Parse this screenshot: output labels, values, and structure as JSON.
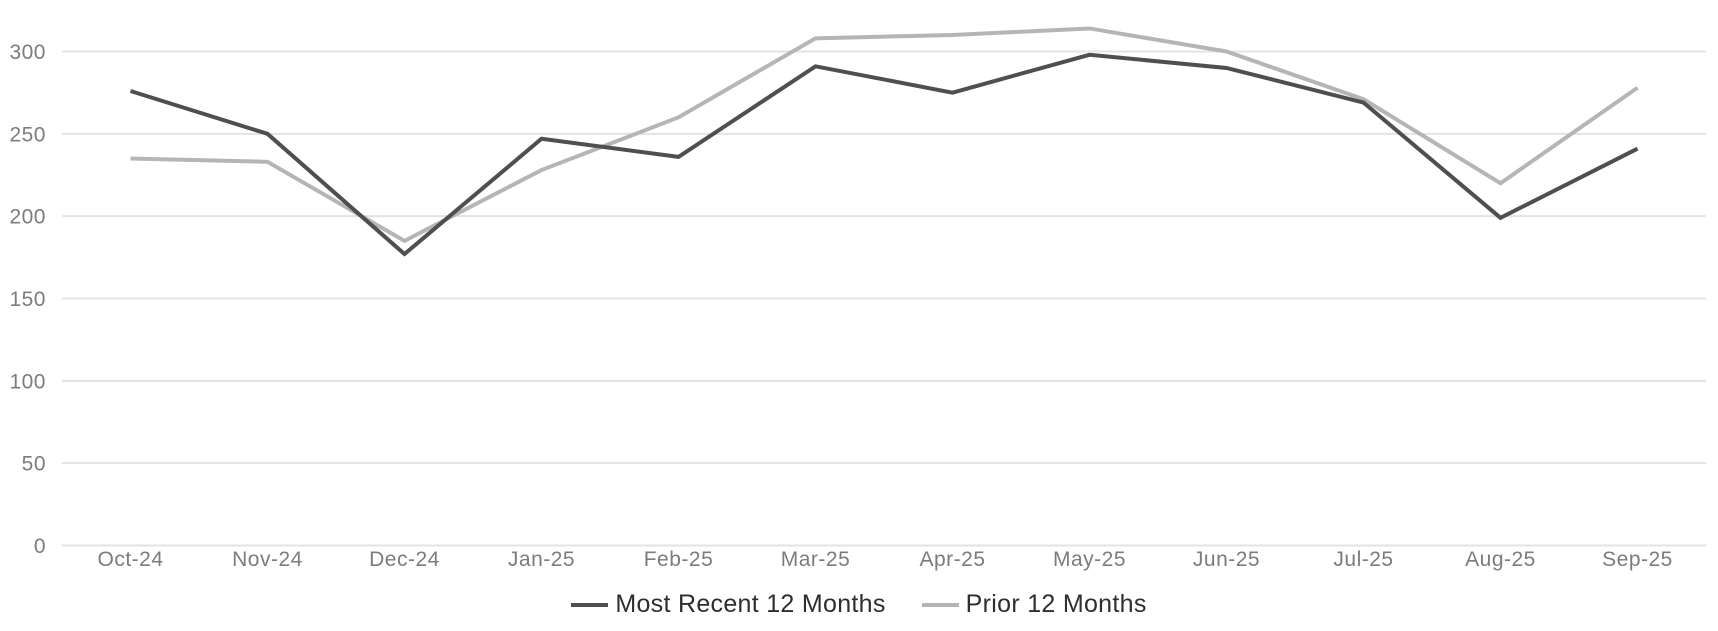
{
  "chart_data": {
    "type": "line",
    "title": "",
    "xlabel": "",
    "ylabel": "",
    "categories": [
      "Oct-24",
      "Nov-24",
      "Dec-24",
      "Jan-25",
      "Feb-25",
      "Mar-25",
      "Apr-25",
      "May-25",
      "Jun-25",
      "Jul-25",
      "Aug-25",
      "Sep-25"
    ],
    "series": [
      {
        "name": "Most Recent 12 Months",
        "color": "#4f4f4f",
        "values": [
          276,
          250,
          177,
          247,
          236,
          291,
          275,
          298,
          290,
          269,
          199,
          241
        ]
      },
      {
        "name": "Prior 12 Months",
        "color": "#b5b5b5",
        "values": [
          235,
          233,
          185,
          228,
          260,
          308,
          310,
          314,
          300,
          271,
          220,
          278
        ]
      }
    ],
    "ylim": [
      0,
      300
    ],
    "yticks": [
      0,
      50,
      100,
      150,
      200,
      250,
      300
    ],
    "grid": true,
    "legend_position": "bottom"
  },
  "colors": {
    "background": "#ffffff",
    "gridline": "#e3e3e3",
    "axis_label": "#7c7c7c",
    "legend_text": "#2e2e2e"
  }
}
